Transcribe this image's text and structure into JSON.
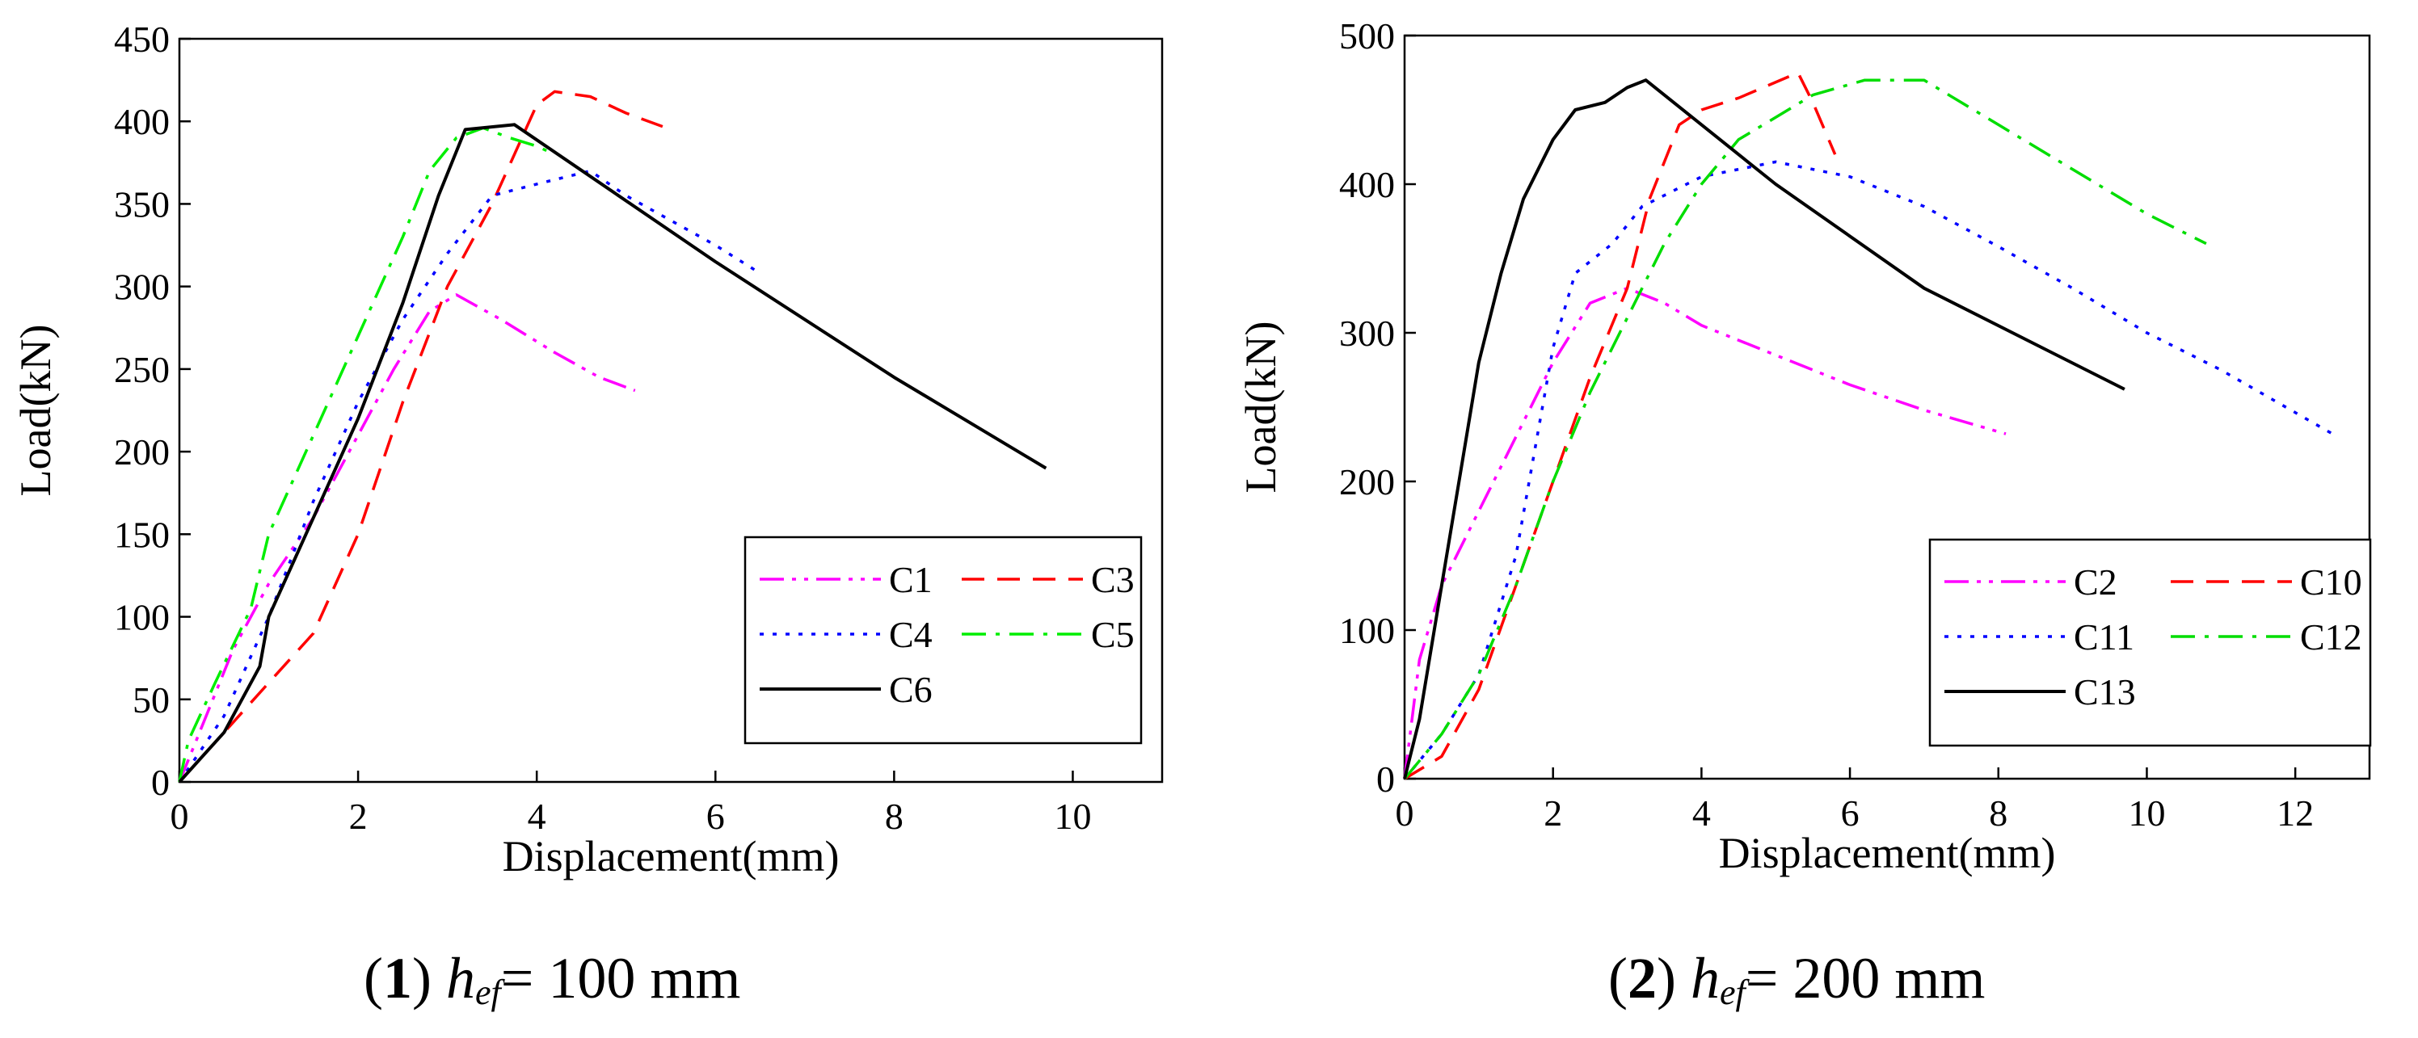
{
  "charts": [
    {
      "caption": {
        "num": "1",
        "var": "h",
        "sub": "ef",
        "text": "= 100 mm"
      },
      "chart_data": {
        "type": "line",
        "xlabel": "Displacement(mm)",
        "ylabel": "Load(kN)",
        "xlim": [
          0,
          11
        ],
        "ylim": [
          0,
          450
        ],
        "xticks": [
          0,
          2,
          4,
          6,
          8,
          10
        ],
        "yticks": [
          0,
          50,
          100,
          150,
          200,
          250,
          300,
          350,
          400,
          450
        ],
        "legend_placement": "bottom-right",
        "legend_columns": 2,
        "series": [
          {
            "name": "C1",
            "color": "#ff00ff",
            "dash": "dashdotdot",
            "points": [
              [
                0,
                0
              ],
              [
                0.3,
                40
              ],
              [
                0.6,
                80
              ],
              [
                1.0,
                120
              ],
              [
                1.5,
                160
              ],
              [
                2.0,
                210
              ],
              [
                2.4,
                250
              ],
              [
                2.8,
                285
              ],
              [
                3.1,
                295
              ],
              [
                3.6,
                280
              ],
              [
                4.2,
                260
              ],
              [
                4.7,
                245
              ],
              [
                5.1,
                237
              ]
            ]
          },
          {
            "name": "C3",
            "color": "#ff0000",
            "dash": "dash",
            "points": [
              [
                0,
                0
              ],
              [
                0.5,
                30
              ],
              [
                1.0,
                60
              ],
              [
                1.5,
                90
              ],
              [
                2.0,
                150
              ],
              [
                2.5,
                230
              ],
              [
                3.0,
                300
              ],
              [
                3.5,
                350
              ],
              [
                4.0,
                410
              ],
              [
                4.2,
                418
              ],
              [
                4.6,
                415
              ],
              [
                5.0,
                405
              ],
              [
                5.5,
                395
              ]
            ]
          },
          {
            "name": "C4",
            "color": "#0000ff",
            "dash": "dot",
            "points": [
              [
                0,
                0
              ],
              [
                0.5,
                40
              ],
              [
                1.0,
                100
              ],
              [
                1.5,
                170
              ],
              [
                2.0,
                230
              ],
              [
                2.5,
                280
              ],
              [
                3.0,
                320
              ],
              [
                3.5,
                355
              ],
              [
                4.0,
                362
              ],
              [
                4.6,
                370
              ],
              [
                5.0,
                355
              ],
              [
                5.5,
                340
              ],
              [
                6.0,
                325
              ],
              [
                6.5,
                308
              ]
            ]
          },
          {
            "name": "C5",
            "color": "#00ee00",
            "dash": "dashdot",
            "points": [
              [
                0,
                0
              ],
              [
                0.1,
                25
              ],
              [
                0.4,
                60
              ],
              [
                0.8,
                105
              ],
              [
                1.0,
                150
              ],
              [
                1.5,
                210
              ],
              [
                2.0,
                270
              ],
              [
                2.5,
                330
              ],
              [
                2.8,
                370
              ],
              [
                3.1,
                390
              ],
              [
                3.4,
                396
              ],
              [
                3.7,
                390
              ],
              [
                4.0,
                385
              ],
              [
                4.2,
                380
              ]
            ]
          },
          {
            "name": "C6",
            "color": "#000000",
            "dash": "solid",
            "points": [
              [
                0,
                0
              ],
              [
                0.5,
                30
              ],
              [
                0.9,
                70
              ],
              [
                1.0,
                100
              ],
              [
                1.5,
                160
              ],
              [
                2.0,
                220
              ],
              [
                2.5,
                290
              ],
              [
                2.9,
                355
              ],
              [
                3.2,
                395
              ],
              [
                3.75,
                398
              ],
              [
                6.0,
                315
              ],
              [
                8.0,
                245
              ],
              [
                9.7,
                190
              ]
            ]
          }
        ]
      }
    },
    {
      "caption": {
        "num": "2",
        "var": "h",
        "sub": "ef",
        "text": "= 200 mm"
      },
      "chart_data": {
        "type": "line",
        "xlabel": "Displacement(mm)",
        "ylabel": "Load(kN)",
        "xlim": [
          0,
          13
        ],
        "ylim": [
          0,
          500
        ],
        "xticks": [
          0,
          2,
          4,
          6,
          8,
          10,
          12
        ],
        "yticks": [
          0,
          100,
          200,
          300,
          400,
          500
        ],
        "legend_placement": "bottom-right",
        "legend_columns": 2,
        "series": [
          {
            "name": "C2",
            "color": "#ff00ff",
            "dash": "dashdotdot",
            "points": [
              [
                0,
                0
              ],
              [
                0.2,
                80
              ],
              [
                0.5,
                130
              ],
              [
                1.0,
                180
              ],
              [
                1.5,
                230
              ],
              [
                2.0,
                280
              ],
              [
                2.5,
                320
              ],
              [
                3.0,
                330
              ],
              [
                3.5,
                320
              ],
              [
                4.0,
                305
              ],
              [
                5.0,
                285
              ],
              [
                6.0,
                265
              ],
              [
                7.0,
                248
              ],
              [
                8.1,
                232
              ]
            ]
          },
          {
            "name": "C10",
            "color": "#ff0000",
            "dash": "dash",
            "points": [
              [
                0,
                0
              ],
              [
                0.5,
                15
              ],
              [
                1.0,
                60
              ],
              [
                1.5,
                130
              ],
              [
                2.0,
                200
              ],
              [
                2.5,
                270
              ],
              [
                3.0,
                330
              ],
              [
                3.3,
                390
              ],
              [
                3.7,
                440
              ],
              [
                4.0,
                450
              ],
              [
                4.5,
                458
              ],
              [
                5.3,
                475
              ],
              [
                5.5,
                455
              ],
              [
                5.8,
                420
              ]
            ]
          },
          {
            "name": "C11",
            "color": "#0000ff",
            "dash": "dot",
            "points": [
              [
                0,
                0
              ],
              [
                0.5,
                30
              ],
              [
                1.0,
                70
              ],
              [
                1.5,
                150
              ],
              [
                2.0,
                290
              ],
              [
                2.3,
                340
              ],
              [
                2.8,
                360
              ],
              [
                3.2,
                385
              ],
              [
                4.0,
                405
              ],
              [
                5.0,
                415
              ],
              [
                6.0,
                405
              ],
              [
                7.0,
                385
              ],
              [
                8.0,
                358
              ],
              [
                9.0,
                330
              ],
              [
                10.0,
                300
              ],
              [
                11.0,
                275
              ],
              [
                12.5,
                232
              ]
            ]
          },
          {
            "name": "C12",
            "color": "#00dd00",
            "dash": "dashdot",
            "points": [
              [
                0,
                0
              ],
              [
                0.5,
                30
              ],
              [
                1.0,
                70
              ],
              [
                1.5,
                130
              ],
              [
                2.0,
                200
              ],
              [
                2.5,
                260
              ],
              [
                3.0,
                310
              ],
              [
                3.5,
                360
              ],
              [
                4.0,
                400
              ],
              [
                4.5,
                430
              ],
              [
                5.5,
                460
              ],
              [
                6.2,
                470
              ],
              [
                7.0,
                470
              ],
              [
                8.0,
                440
              ],
              [
                9.0,
                410
              ],
              [
                10.0,
                380
              ],
              [
                10.8,
                360
              ]
            ]
          },
          {
            "name": "C13",
            "color": "#000000",
            "dash": "solid",
            "points": [
              [
                0,
                0
              ],
              [
                0.2,
                40
              ],
              [
                0.5,
                130
              ],
              [
                0.8,
                220
              ],
              [
                1.0,
                280
              ],
              [
                1.3,
                340
              ],
              [
                1.6,
                390
              ],
              [
                2.0,
                430
              ],
              [
                2.3,
                450
              ],
              [
                2.7,
                455
              ],
              [
                3.0,
                465
              ],
              [
                3.25,
                470
              ],
              [
                5.0,
                400
              ],
              [
                7.0,
                330
              ],
              [
                9.7,
                262
              ]
            ]
          }
        ]
      }
    }
  ]
}
